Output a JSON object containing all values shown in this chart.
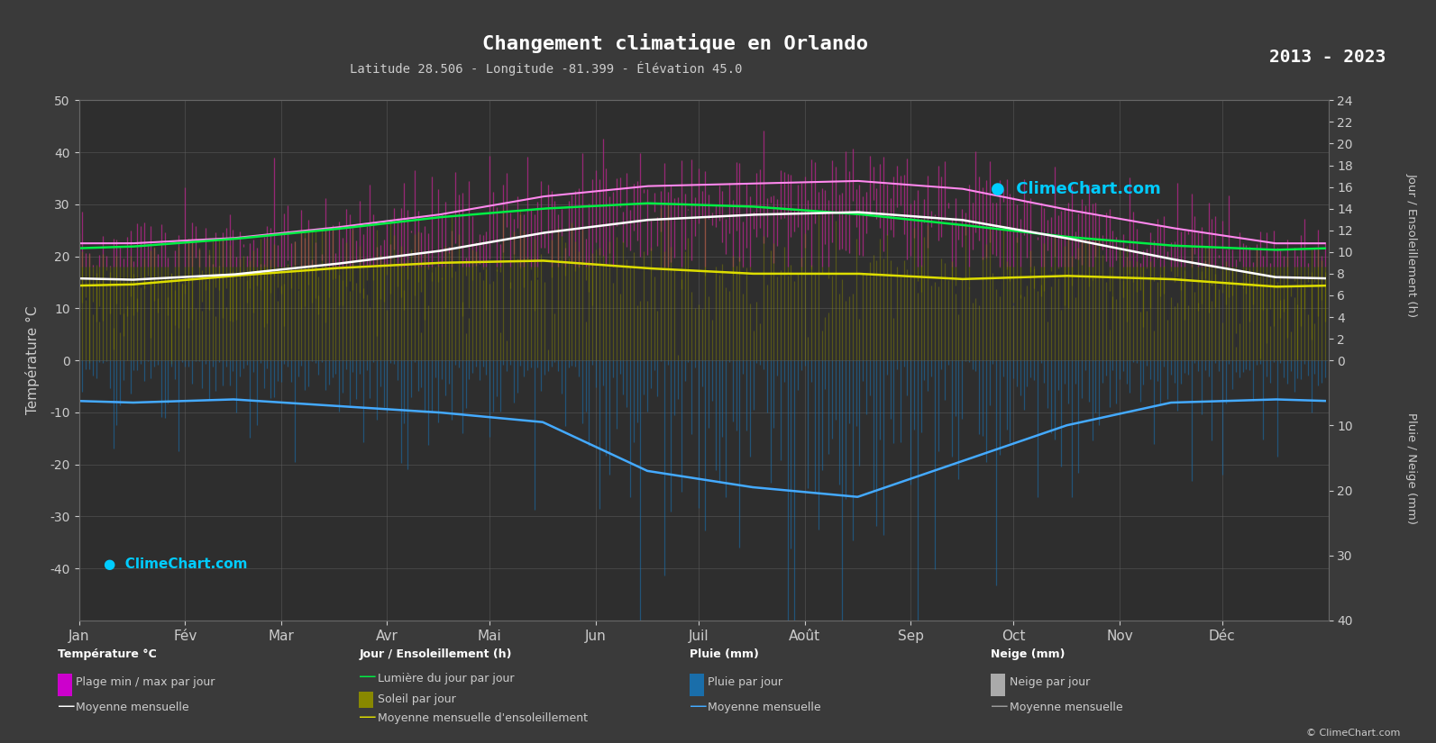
{
  "title": "Changement climatique en Orlando",
  "subtitle": "Latitude 28.506 - Longitude -81.399 - Élévation 45.0",
  "year_range": "2013 - 2023",
  "bg_color": "#3a3a3a",
  "plot_bg_color": "#2e2e2e",
  "months": [
    "Jan",
    "Fév",
    "Mar",
    "Avr",
    "Mai",
    "Jun",
    "Juil",
    "Août",
    "Sep",
    "Oct",
    "Nov",
    "Déc"
  ],
  "days_per_month": [
    31,
    28,
    31,
    30,
    31,
    30,
    31,
    31,
    30,
    31,
    30,
    31
  ],
  "temp_ylim": [
    -50,
    50
  ],
  "temp_mean_monthly": [
    15.5,
    16.5,
    18.5,
    21.0,
    24.5,
    27.0,
    28.0,
    28.5,
    27.0,
    23.5,
    19.5,
    16.0
  ],
  "temp_max_monthly": [
    22.5,
    23.5,
    25.5,
    28.0,
    31.5,
    33.5,
    34.0,
    34.5,
    33.0,
    29.0,
    25.5,
    22.5
  ],
  "temp_min_monthly": [
    10.0,
    11.0,
    13.0,
    15.5,
    19.5,
    22.0,
    23.0,
    23.5,
    22.0,
    18.5,
    14.0,
    10.5
  ],
  "daylight_monthly": [
    10.5,
    11.2,
    12.1,
    13.2,
    14.0,
    14.5,
    14.2,
    13.5,
    12.5,
    11.4,
    10.6,
    10.2
  ],
  "sunshine_monthly": [
    7.0,
    7.8,
    8.5,
    9.0,
    9.2,
    8.5,
    8.0,
    8.0,
    7.5,
    7.8,
    7.5,
    6.8
  ],
  "precip_mean_monthly": [
    6.5,
    6.0,
    7.0,
    8.0,
    9.5,
    17.0,
    19.5,
    21.0,
    15.5,
    10.0,
    6.5,
    6.0
  ],
  "grid_color": "#666666",
  "text_color": "#cccccc",
  "daylight_line_color": "#00ee44",
  "sunshine_line_color": "#dddd00",
  "precip_line_color": "#44aaff",
  "temp_mean_line_color": "#ffeeaa",
  "temp_max_line_color": "#ff88ff",
  "copyright": "© ClimeChart.com"
}
